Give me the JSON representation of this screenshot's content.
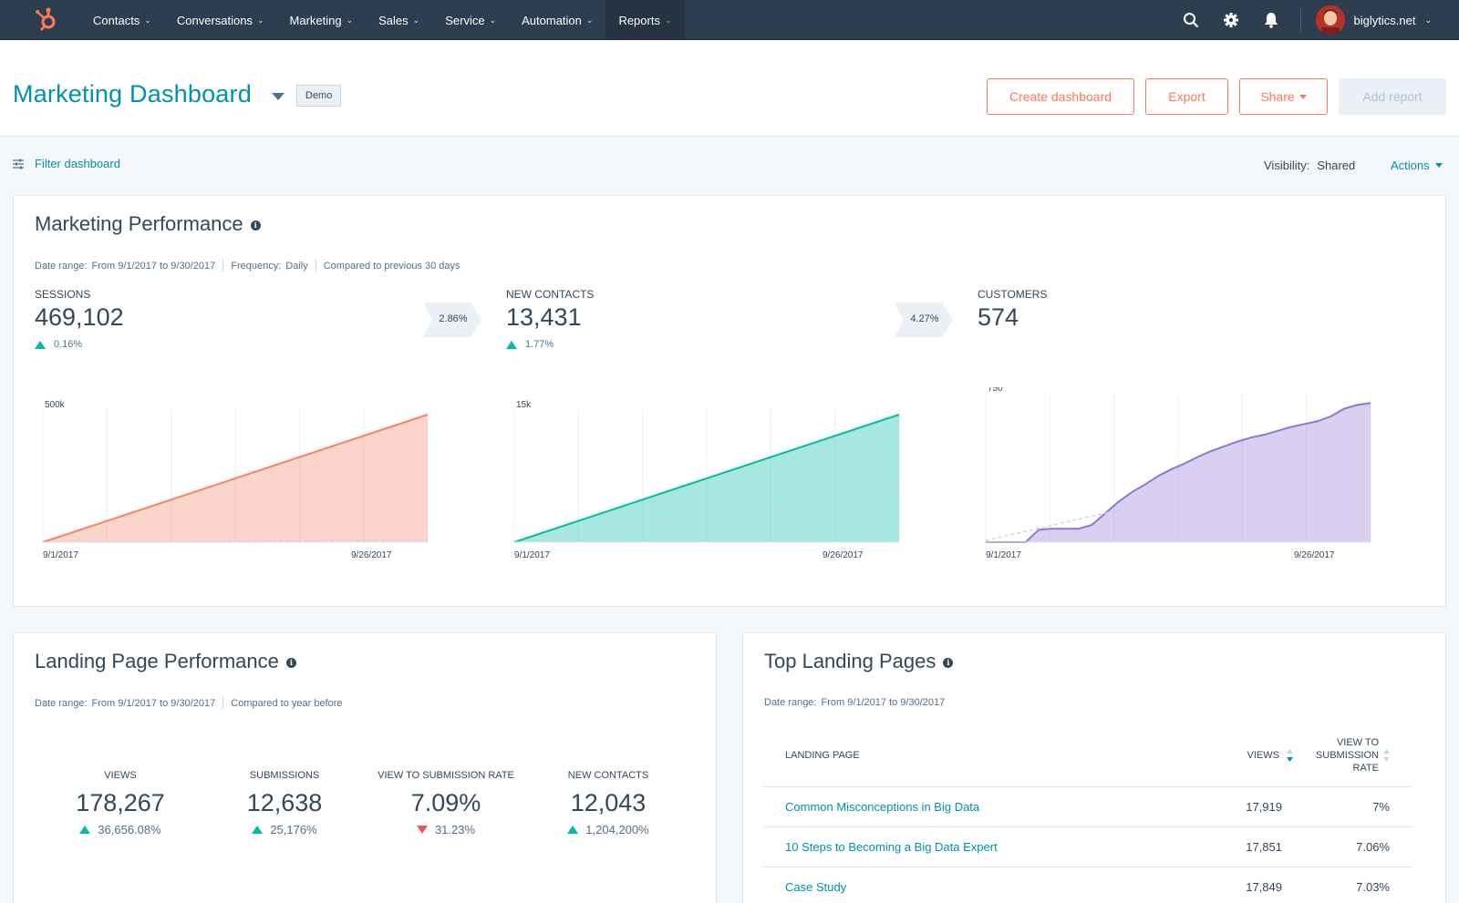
{
  "nav": {
    "items": [
      {
        "label": "Contacts"
      },
      {
        "label": "Conversations"
      },
      {
        "label": "Marketing"
      },
      {
        "label": "Sales"
      },
      {
        "label": "Service"
      },
      {
        "label": "Automation"
      },
      {
        "label": "Reports"
      }
    ],
    "account": "biglytics.net",
    "brand_color": "#ff7a59",
    "bar_color": "#2d3e50"
  },
  "header": {
    "title": "Marketing Dashboard",
    "badge": "Demo",
    "buttons": {
      "create": "Create dashboard",
      "export": "Export",
      "share": "Share",
      "add_report": "Add report"
    }
  },
  "filterbar": {
    "filter_label": "Filter dashboard",
    "visibility_label": "Visibility:",
    "visibility_value": "Shared",
    "actions_label": "Actions"
  },
  "marketing_performance": {
    "title": "Marketing Performance",
    "date_range_label": "Date range:",
    "date_range": "From 9/1/2017 to 9/30/2017",
    "frequency_label": "Frequency:",
    "frequency": "Daily",
    "compared": "Compared to previous 30 days",
    "kpis": [
      {
        "label": "SESSIONS",
        "value": "469,102",
        "change": "0.16%"
      },
      {
        "label": "NEW CONTACTS",
        "value": "13,431",
        "change": "1.77%"
      },
      {
        "label": "CUSTOMERS",
        "value": "574"
      }
    ],
    "conversions": [
      "2.86%",
      "4.27%"
    ]
  },
  "chart_data": [
    {
      "type": "area",
      "series": [
        {
          "values": [
            0,
            500000
          ]
        }
      ],
      "x": [
        "9/1/2017",
        "9/30/2017"
      ],
      "ytick": "500k",
      "xticks": [
        "9/1/2017",
        "9/26/2017"
      ],
      "ylim": [
        0,
        500000
      ],
      "color": "#f2836b"
    },
    {
      "type": "area",
      "series": [
        {
          "values": [
            0,
            15000
          ]
        }
      ],
      "x": [
        "9/1/2017",
        "9/30/2017"
      ],
      "ytick": "15k",
      "xticks": [
        "9/1/2017",
        "9/26/2017"
      ],
      "ylim": [
        0,
        15000
      ],
      "color": "#00bda5"
    },
    {
      "type": "area",
      "series": [
        {
          "values": [
            0,
            0,
            0,
            0,
            65,
            70,
            70,
            70,
            90,
            150,
            210,
            260,
            300,
            345,
            380,
            410,
            445,
            475,
            500,
            525,
            545,
            560,
            580,
            600,
            615,
            630,
            655,
            695,
            715,
            725
          ]
        }
      ],
      "ytick": "750",
      "xticks": [
        "9/1/2017",
        "9/26/2017"
      ],
      "ylim": [
        0,
        750
      ],
      "color": "#8e76d6"
    }
  ],
  "landing_performance": {
    "title": "Landing Page Performance",
    "date_range_label": "Date range:",
    "date_range": "From 9/1/2017 to 9/30/2017",
    "compared": "Compared to year before",
    "kpis": [
      {
        "label": "VIEWS",
        "value": "178,267",
        "change": "36,656.08%",
        "dir": "up"
      },
      {
        "label": "SUBMISSIONS",
        "value": "12,638",
        "change": "25,176%",
        "dir": "up"
      },
      {
        "label": "VIEW TO SUBMISSION RATE",
        "value": "7.09%",
        "change": "31.23%",
        "dir": "down"
      },
      {
        "label": "NEW CONTACTS",
        "value": "12,043",
        "change": "1,204,200%",
        "dir": "up"
      }
    ]
  },
  "top_landing": {
    "title": "Top Landing Pages",
    "date_range_label": "Date range:",
    "date_range": "From 9/1/2017 to 9/30/2017",
    "columns": {
      "page": "LANDING PAGE",
      "views": "VIEWS",
      "rate_1": "VIEW TO",
      "rate_2": "SUBMISSION",
      "rate_3": "RATE"
    },
    "rows": [
      {
        "page": "Common Misconceptions in Big Data",
        "views": "17,919",
        "rate": "7%"
      },
      {
        "page": "10 Steps to Becoming a Big Data Expert",
        "views": "17,851",
        "rate": "7.06%"
      },
      {
        "page": "Case Study",
        "views": "17,849",
        "rate": "7.03%"
      }
    ]
  }
}
